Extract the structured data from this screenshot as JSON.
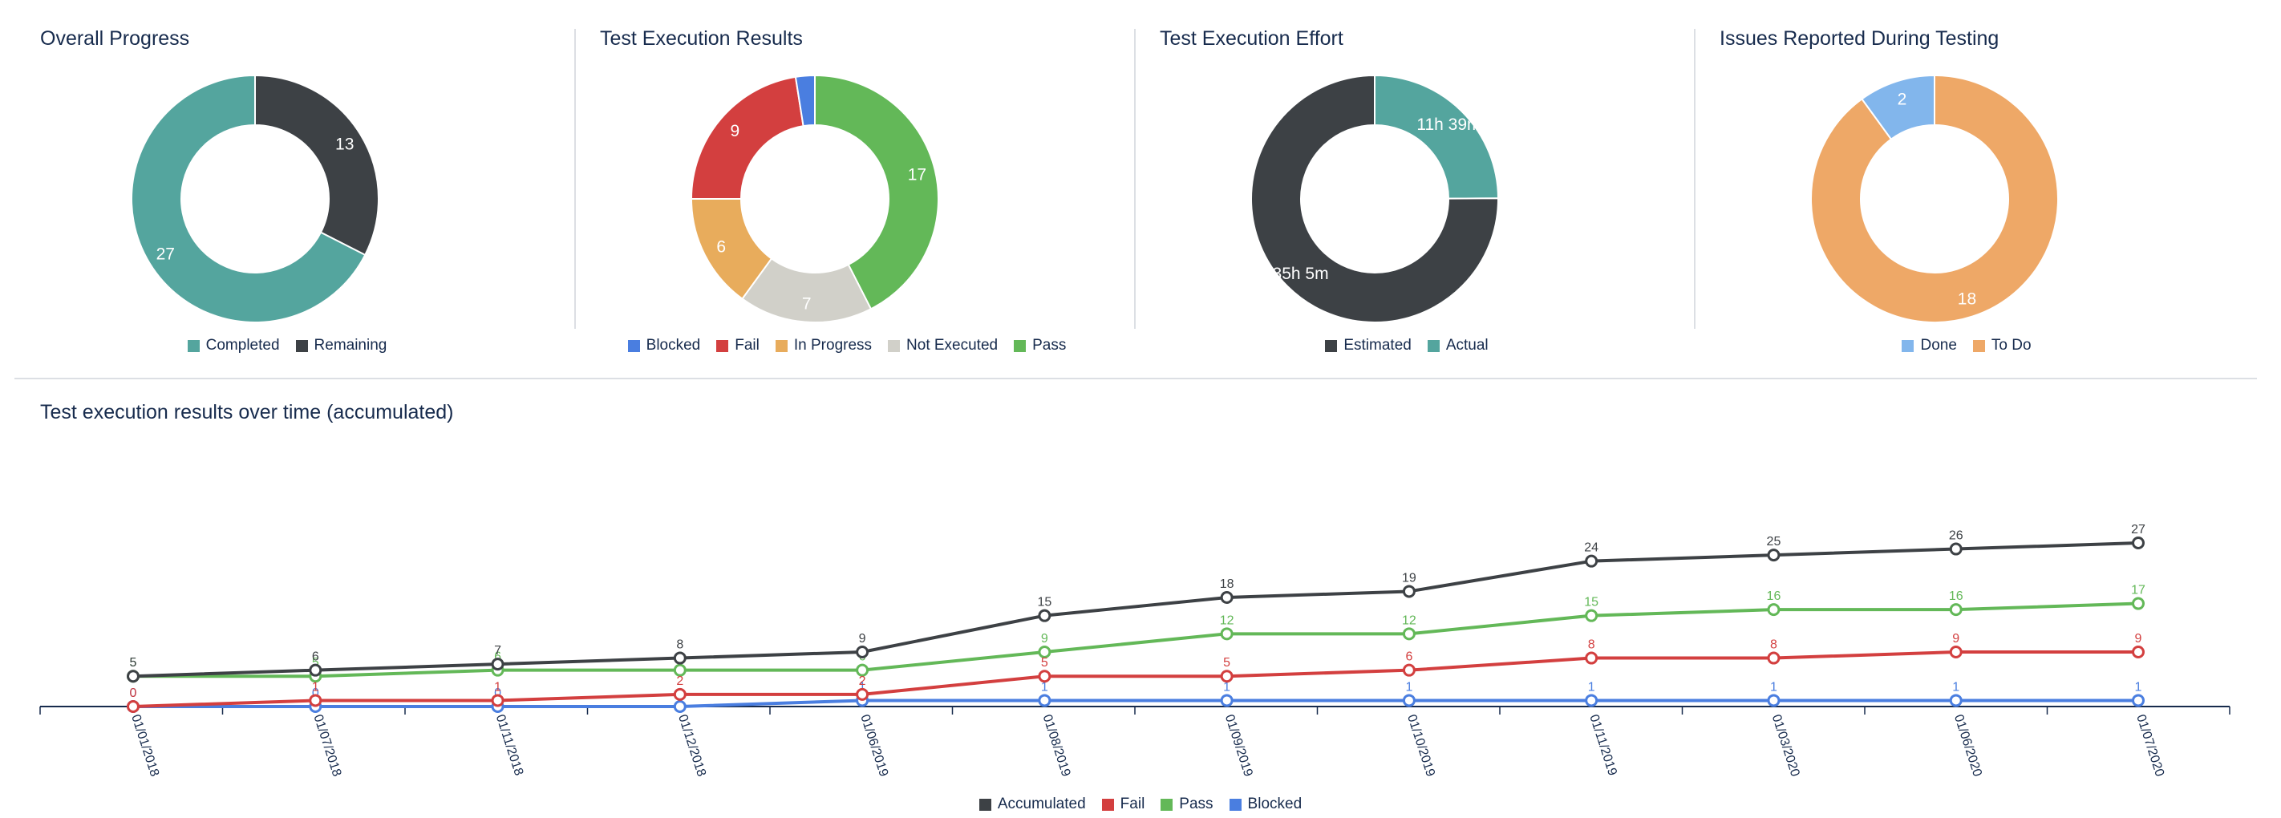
{
  "chart_data": [
    {
      "type": "pie",
      "variant": "donut",
      "title": "Overall Progress",
      "slices": [
        {
          "label": "Completed",
          "value": 27,
          "color": "#54a59e"
        },
        {
          "label": "Remaining",
          "value": 13,
          "color": "#3d4145"
        }
      ]
    },
    {
      "type": "pie",
      "variant": "donut",
      "title": "Test Execution Results",
      "slices": [
        {
          "label": "Blocked",
          "value": 1,
          "color": "#4a7ee0",
          "display": ""
        },
        {
          "label": "Fail",
          "value": 9,
          "color": "#d33f3f"
        },
        {
          "label": "In Progress",
          "value": 6,
          "color": "#e8ac5c"
        },
        {
          "label": "Not Executed",
          "value": 7,
          "color": "#d1d0c9"
        },
        {
          "label": "Pass",
          "value": 17,
          "color": "#63b858"
        }
      ]
    },
    {
      "type": "pie",
      "variant": "donut",
      "title": "Test Execution Effort",
      "slices": [
        {
          "label": "Estimated",
          "value": 2105,
          "display": "35h 5m",
          "color": "#3d4145"
        },
        {
          "label": "Actual",
          "value": 699,
          "display": "11h 39m",
          "color": "#54a59e"
        }
      ]
    },
    {
      "type": "pie",
      "variant": "donut",
      "title": "Issues Reported During Testing",
      "slices": [
        {
          "label": "Done",
          "value": 2,
          "color": "#82b6ec"
        },
        {
          "label": "To Do",
          "value": 18,
          "color": "#eea867"
        }
      ]
    },
    {
      "type": "line",
      "title": "Test execution results over time (accumulated)",
      "x": [
        "01/01/2018",
        "01/07/2018",
        "01/11/2018",
        "01/12/2018",
        "01/06/2019",
        "01/08/2019",
        "01/09/2019",
        "01/10/2019",
        "01/11/2019",
        "01/03/2020",
        "01/06/2020",
        "01/07/2020"
      ],
      "ylim": [
        0,
        27
      ],
      "series": [
        {
          "name": "Accumulated",
          "color": "#3d4145",
          "values": [
            5,
            6,
            7,
            8,
            9,
            15,
            18,
            19,
            24,
            25,
            26,
            27
          ]
        },
        {
          "name": "Fail",
          "color": "#d33f3f",
          "values": [
            0,
            1,
            1,
            2,
            2,
            5,
            5,
            6,
            8,
            8,
            9,
            9
          ]
        },
        {
          "name": "Pass",
          "color": "#63b858",
          "values": [
            5,
            5,
            6,
            6,
            6,
            9,
            12,
            12,
            15,
            16,
            16,
            17
          ]
        },
        {
          "name": "Blocked",
          "color": "#4a7ee0",
          "values": [
            0,
            0,
            0,
            0,
            1,
            1,
            1,
            1,
            1,
            1,
            1,
            1
          ]
        }
      ]
    }
  ]
}
